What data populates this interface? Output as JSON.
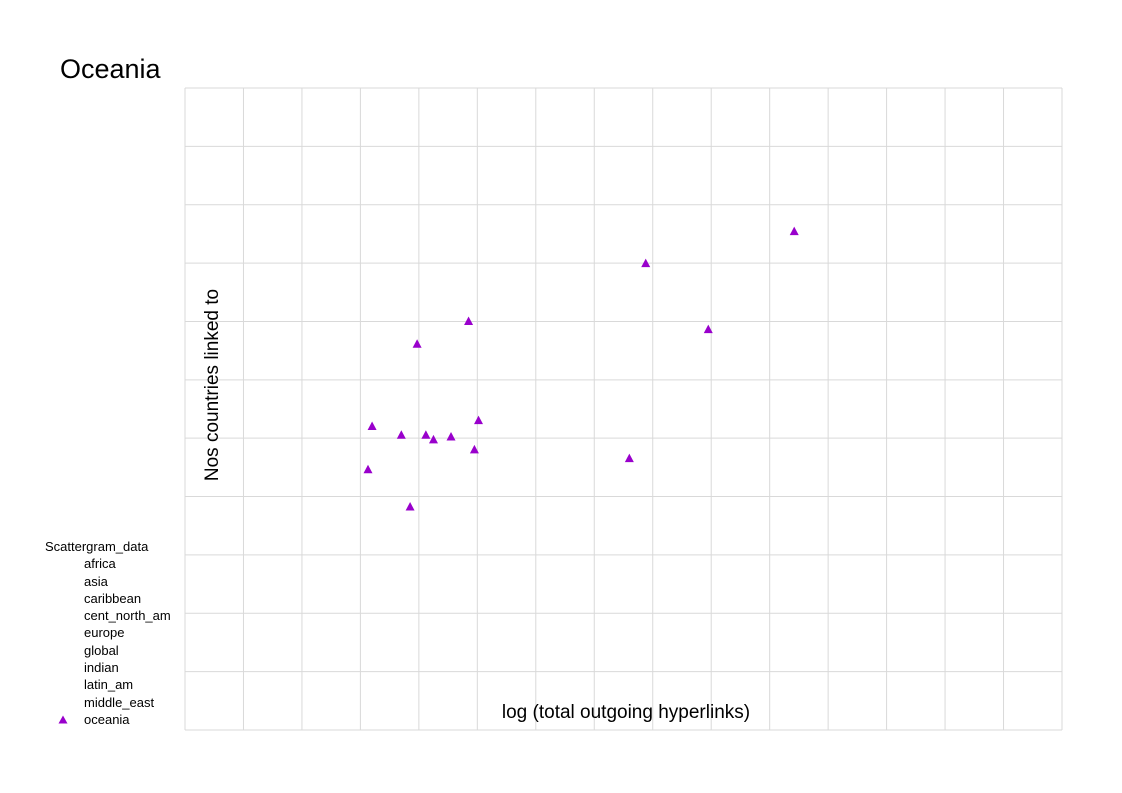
{
  "chart_data": {
    "type": "scatter",
    "title": "Oceania",
    "xlabel": "log (total outgoing hyperlinks)",
    "ylabel": "Nos countries linked to",
    "xlim": [
      0,
      15
    ],
    "ylim": [
      0,
      11
    ],
    "grid": true,
    "axis_ticks_visible": false,
    "legend_title": "Scattergram_data",
    "legend_position": "bottom-left",
    "legend_entries": [
      {
        "label": "africa",
        "marker": "none"
      },
      {
        "label": "asia",
        "marker": "none"
      },
      {
        "label": "caribbean",
        "marker": "none"
      },
      {
        "label": "cent_north_am",
        "marker": "none"
      },
      {
        "label": "europe",
        "marker": "none"
      },
      {
        "label": "global",
        "marker": "none"
      },
      {
        "label": "indian",
        "marker": "none"
      },
      {
        "label": "latin_am",
        "marker": "none"
      },
      {
        "label": "middle_east",
        "marker": "none"
      },
      {
        "label": "oceania",
        "marker": "triangle"
      }
    ],
    "series": [
      {
        "name": "oceania",
        "color": "#9900cc",
        "marker": "triangle",
        "points": [
          {
            "x": 3.2,
            "y": 5.2
          },
          {
            "x": 3.7,
            "y": 5.05
          },
          {
            "x": 4.12,
            "y": 5.05
          },
          {
            "x": 4.25,
            "y": 4.97
          },
          {
            "x": 4.55,
            "y": 5.02
          },
          {
            "x": 5.02,
            "y": 5.3
          },
          {
            "x": 4.95,
            "y": 4.8
          },
          {
            "x": 3.13,
            "y": 4.46
          },
          {
            "x": 3.85,
            "y": 3.82
          },
          {
            "x": 3.97,
            "y": 6.61
          },
          {
            "x": 4.85,
            "y": 7.0
          },
          {
            "x": 7.6,
            "y": 4.65
          },
          {
            "x": 7.88,
            "y": 7.99
          },
          {
            "x": 8.95,
            "y": 6.86
          },
          {
            "x": 10.42,
            "y": 8.54
          }
        ]
      }
    ]
  }
}
